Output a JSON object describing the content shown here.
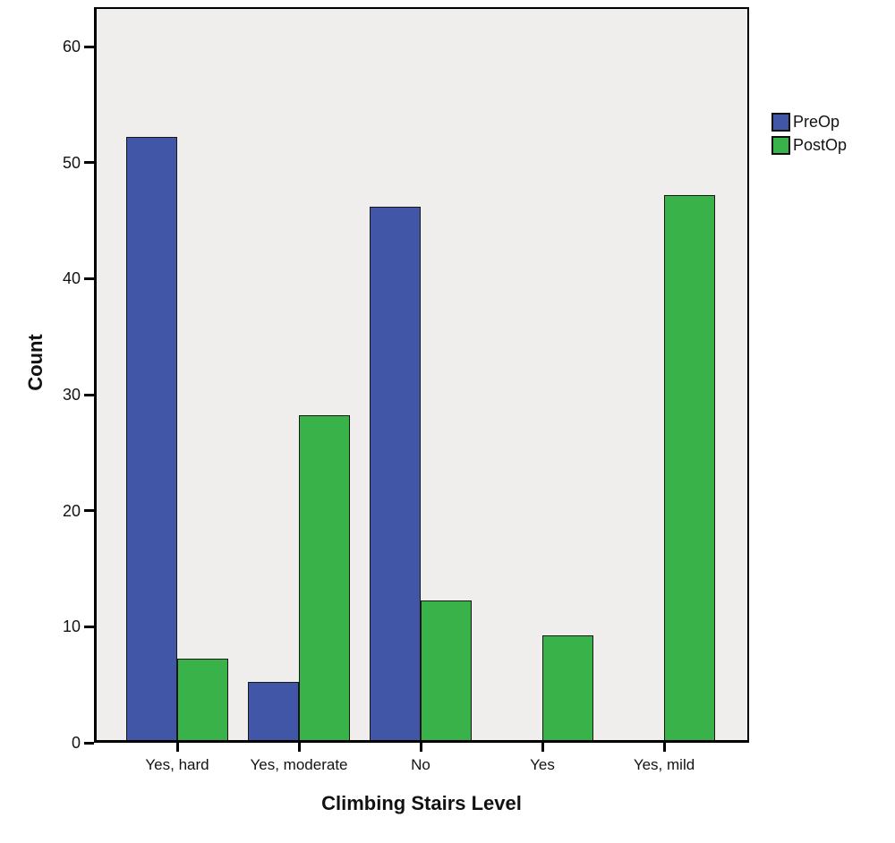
{
  "chart_data": {
    "type": "bar",
    "title": "",
    "xlabel": "Climbing Stairs Level",
    "ylabel": "Count",
    "categories": [
      "Yes, hard",
      "Yes, moderate",
      "No",
      "Yes",
      "Yes, mild"
    ],
    "series": [
      {
        "name": "PreOp",
        "color": "#4256a8",
        "values": [
          52,
          5,
          46,
          0,
          0
        ]
      },
      {
        "name": "PostOp",
        "color": "#3ab24a",
        "values": [
          7,
          28,
          12,
          9,
          47
        ]
      }
    ],
    "ylim": [
      0,
      60
    ],
    "yticks": [
      0,
      10,
      20,
      30,
      40,
      50,
      60
    ],
    "legend_position": "outside-upper-right",
    "grid": false,
    "plot_background": "#efeeec",
    "frame_color": "#000000",
    "bar_border_color": "#161616"
  }
}
